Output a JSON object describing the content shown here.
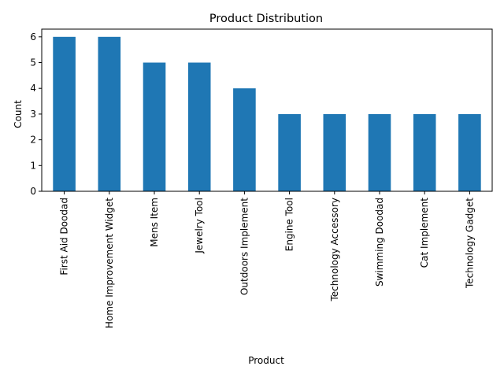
{
  "chart_data": {
    "type": "bar",
    "title": "Product Distribution",
    "xlabel": "Product",
    "ylabel": "Count",
    "categories": [
      "First Aid Doodad",
      "Home Improvement Widget",
      "Mens Item",
      "Jewelry Tool",
      "Outdoors Implement",
      "Engine Tool",
      "Technology Accessory",
      "Swimming Doodad",
      "Cat Implement",
      "Technology Gadget"
    ],
    "values": [
      6,
      6,
      5,
      5,
      4,
      3,
      3,
      3,
      3,
      3
    ],
    "yticks": [
      "0",
      "1",
      "2",
      "3",
      "4",
      "5",
      "6"
    ],
    "ylim": [
      0,
      6.3
    ],
    "grid": false,
    "legend": "none",
    "bar_color": "#1f77b4"
  }
}
